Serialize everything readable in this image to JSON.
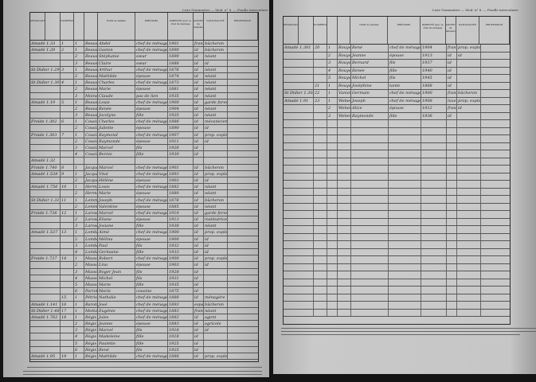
{
  "running_header": "Liste Nominative — Mod. n° 8. — Feuille intercalaire",
  "columns": [
    "DÉSIGNATION",
    "",
    "NUMÉROS",
    "",
    "",
    "NOM de famille",
    "PRÉNOMS",
    "PARENTÉ avec le chef de ménage",
    "ANNÉE de naissance",
    "NATIONALITÉ",
    "PROFESSION"
  ],
  "left_page": {
    "rows": [
      [
        "Amadé 1.33",
        "1",
        "1",
        "Beausir",
        "Abdel",
        "chef de ménage",
        "1901",
        "française",
        "bûcheron"
      ],
      [
        "Amadé 1.29",
        "2",
        "1",
        "Beausir",
        "Gaston",
        "chef de ménage",
        "1890",
        "id",
        "bûcheron"
      ],
      [
        "",
        "",
        "2",
        "Beausir",
        "Stéphanie",
        "sœur",
        "1890",
        "id",
        "néant"
      ],
      [
        "",
        "",
        "3",
        "Beausir",
        "Claire",
        "sœur",
        "1888",
        "id",
        "id"
      ],
      [
        "St Didier 1.29",
        "3",
        "1",
        "Beausir",
        "Arthur",
        "chef de ménage",
        "1876",
        "id",
        "néant"
      ],
      [
        "",
        "",
        "2",
        "Beausir",
        "Mathilde",
        "épouse",
        "1874",
        "id",
        "néant"
      ],
      [
        "St Didier 1.30",
        "4",
        "1",
        "Beausir",
        "Charles",
        "chef de ménage",
        "1873",
        "id",
        "néant"
      ],
      [
        "",
        "",
        "2",
        "Beausir",
        "Marie",
        "épouse",
        "1881",
        "id",
        "néant"
      ],
      [
        "",
        "",
        "3",
        "Moine",
        "Claude",
        "pas de lien",
        "1935",
        "id",
        "néant"
      ],
      [
        "Amadé 1.19",
        "5",
        "1",
        "Beausir",
        "Louis",
        "chef de ménage",
        "1900",
        "id",
        "garde forestier"
      ],
      [
        "",
        "",
        "2",
        "Beausir",
        "Renée",
        "épouse",
        "1904",
        "id",
        "néant"
      ],
      [
        "",
        "",
        "3",
        "Beausir",
        "Jocelyne",
        "fille",
        "1925",
        "id",
        "néant"
      ],
      [
        "Froide 1.302",
        "6",
        "1",
        "Cousin",
        "Charles",
        "chef de ménage",
        "1886",
        "id",
        "mécanicien"
      ],
      [
        "",
        "",
        "2",
        "Cousin",
        "Juliette",
        "épouse",
        "1890",
        "id",
        "id"
      ],
      [
        "Froide 1.303",
        "7",
        "1",
        "Cousin",
        "Raymond",
        "chef de ménage",
        "1907",
        "id",
        "prop. exploitant"
      ],
      [
        "",
        "",
        "2",
        "Cousin",
        "Raymonde",
        "épouse",
        "1911",
        "id",
        "id"
      ],
      [
        "",
        "",
        "3",
        "Cousin",
        "Marcel",
        "fils",
        "1926",
        "id",
        ""
      ],
      [
        "",
        "",
        "4",
        "Cousin",
        "Bernie",
        "fille",
        "1930",
        "id",
        ""
      ],
      [
        "Amadé 1.32",
        "",
        "",
        "",
        "",
        "",
        "",
        "",
        ""
      ],
      [
        "Froide 1.740",
        "8",
        "1",
        "Jacquemin",
        "Marcel",
        "chef de ménage",
        "1901",
        "id",
        "bûcheron"
      ],
      [
        "Amadé 1.538",
        "9",
        "1",
        "Jacquemin",
        "Vital",
        "chef de ménage",
        "1893",
        "id",
        "prop. exploitant"
      ],
      [
        "",
        "",
        "2",
        "Jacquemin",
        "Hélène",
        "épouse",
        "1903",
        "id",
        "id"
      ],
      [
        "Amadé 1.756",
        "10",
        "1",
        "Hermann",
        "Louis",
        "chef de ménage",
        "1882",
        "id",
        "néant"
      ],
      [
        "",
        "",
        "2",
        "Hermann",
        "Marie",
        "épouse",
        "1880",
        "id",
        "néant"
      ],
      [
        "St Didier 1.31",
        "11",
        "1",
        "Lemminach",
        "Joseph",
        "chef de ménage",
        "1878",
        "id",
        "bûcheron"
      ],
      [
        "",
        "",
        "2",
        "Lemminach",
        "Valentine",
        "épouse",
        "1885",
        "id",
        "néant"
      ],
      [
        "Froide 1.738",
        "12",
        "1",
        "Larose",
        "Marcel",
        "chef de ménage",
        "1910",
        "id",
        "garde forestier"
      ],
      [
        "",
        "",
        "2",
        "Larose",
        "Eliane",
        "épouse",
        "1913",
        "id",
        "institutrice"
      ],
      [
        "",
        "",
        "3",
        "Larose",
        "Josiane",
        "fille",
        "1938",
        "id",
        "néant"
      ],
      [
        "Amadé 1.537",
        "13",
        "1",
        "Lombard",
        "Aimé",
        "chef de ménage",
        "1900",
        "id",
        "prop. exploitant"
      ],
      [
        "",
        "",
        "2",
        "Lombard",
        "Mélina",
        "épouse",
        "1900",
        "id",
        "id"
      ],
      [
        "",
        "",
        "3",
        "Lombard",
        "Paul",
        "fils",
        "1932",
        "id",
        "id"
      ],
      [
        "",
        "",
        "4",
        "Lombard",
        "Germaine",
        "fille",
        "1933",
        "id",
        "id"
      ],
      [
        "Froide 1.737",
        "14",
        "1",
        "Massonpierre",
        "Robert",
        "chef de ménage",
        "1900",
        "id",
        "prop. exploitant"
      ],
      [
        "",
        "",
        "2",
        "Massonpierre",
        "Lina",
        "épouse",
        "1903",
        "id",
        "id"
      ],
      [
        "",
        "",
        "3",
        "Massonpierre",
        "Roger Jean",
        "fils",
        "1928",
        "id",
        ""
      ],
      [
        "",
        "",
        "4",
        "Massonpierre",
        "Michel",
        "fils",
        "1931",
        "id",
        ""
      ],
      [
        "",
        "",
        "5",
        "Massonpierre",
        "Marie",
        "fille",
        "1935",
        "id",
        ""
      ],
      [
        "",
        "",
        "6",
        "Parrot",
        "Marie",
        "cousine",
        "1875",
        "id",
        ""
      ],
      [
        "",
        "15",
        "1",
        "Pétrisson",
        "Nathalie",
        "chef de ménage",
        "1888",
        "id",
        "ménagère"
      ],
      [
        "Amadé 1.141",
        "16",
        "1",
        "Barotte",
        "José",
        "chef de ménage",
        "1893",
        "espagnole",
        "bûcheron"
      ],
      [
        "St Didier 1.48",
        "17",
        "1",
        "Mettavant",
        "Eugénie",
        "chef de ménage",
        "1883",
        "française",
        "néant"
      ],
      [
        "Amadé 1.762",
        "18",
        "1",
        "Régis",
        "Jules",
        "chef de ménage",
        "1882",
        "id",
        "agent"
      ],
      [
        "",
        "",
        "2",
        "Régis",
        "Jeanne",
        "épouse",
        "1883",
        "id",
        "agricole"
      ],
      [
        "",
        "",
        "3",
        "Régis",
        "Marcel",
        "fils",
        "1918",
        "id",
        "id"
      ],
      [
        "",
        "",
        "4",
        "Régis",
        "Madeleine",
        "fille",
        "1918",
        "id",
        ""
      ],
      [
        "",
        "",
        "5",
        "Régis",
        "Paulette",
        "fille",
        "1925",
        "id",
        ""
      ],
      [
        "",
        "",
        "6",
        "Régis",
        "René",
        "fils",
        "1925",
        "id",
        ""
      ],
      [
        "Amadé 1.95",
        "19",
        "1",
        "Régis",
        "Mathilde",
        "chef de ménage",
        "1886",
        "id",
        "prop. exploitant"
      ]
    ]
  },
  "right_page": {
    "rows": [
      [
        "Amadé 1.301",
        "20",
        "1",
        "Rouyer",
        "René",
        "chef de ménage",
        "1904",
        "française",
        "prop. exploitant"
      ],
      [
        "",
        "",
        "2",
        "Rouyer",
        "Jeanne",
        "épouse",
        "1913",
        "id",
        "id"
      ],
      [
        "",
        "",
        "3",
        "Rouyer",
        "Bernard",
        "fils",
        "1937",
        "id",
        ""
      ],
      [
        "",
        "",
        "4",
        "Rouyer",
        "Renée",
        "fille",
        "1940",
        "id",
        ""
      ],
      [
        "",
        "",
        "5",
        "Rouyer",
        "Michel",
        "fils",
        "1945",
        "id",
        ""
      ],
      [
        "",
        "21",
        "1",
        "Rouyer",
        "Joséphine",
        "tante",
        "1868",
        "id",
        ""
      ],
      [
        "St Didier 1.302",
        "22",
        "1",
        "Vanier",
        "Germain",
        "chef de ménage",
        "1900",
        "française",
        "bûcheron"
      ],
      [
        "Amadé 1.91",
        "23",
        "1",
        "Weber",
        "Joseph",
        "chef de ménage",
        "1908",
        "luxembourgeoise",
        "prop. exploitant"
      ],
      [
        "",
        "",
        "2",
        "Weber",
        "Alice",
        "épouse",
        "1912",
        "française",
        "id"
      ],
      [
        "",
        "",
        "3",
        "Weber",
        "Raymonde",
        "fille",
        "1936",
        "id",
        ""
      ]
    ],
    "blank_rows": 26
  }
}
